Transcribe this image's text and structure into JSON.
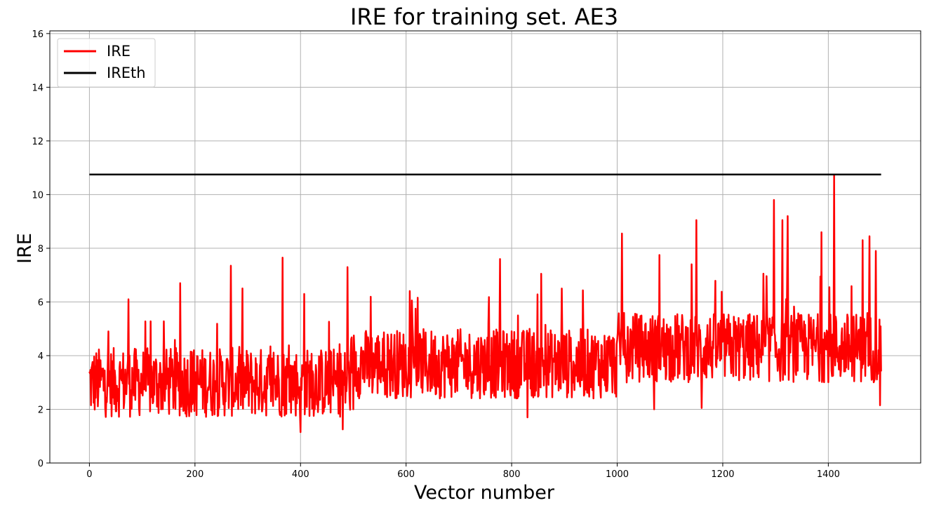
{
  "chart_data": {
    "type": "line",
    "title": "IRE for training set. AE3",
    "xlabel": "Vector number",
    "ylabel": "IRE",
    "xlim": [
      -75,
      1575
    ],
    "ylim": [
      0,
      16.1
    ],
    "x_ticks": [
      0,
      200,
      400,
      600,
      800,
      1000,
      1200,
      1400
    ],
    "y_ticks": [
      0,
      2,
      4,
      6,
      8,
      10,
      12,
      14,
      16
    ],
    "grid": true,
    "legend_position": "top-left",
    "n_points": 1501,
    "series": [
      {
        "name": "IRE",
        "color": "#ff0000",
        "description": "noisy per-vector reconstruction error; mostly between ~1.2 and ~7.7 for vectors 0-1000, rising to ~2-9 after 1000",
        "segments": [
          {
            "x_range": [
              0,
              500
            ],
            "mean": 3.0,
            "min": 1.15,
            "max": 7.7
          },
          {
            "x_range": [
              500,
              1000
            ],
            "mean": 3.7,
            "min": 1.7,
            "max": 7.65
          },
          {
            "x_range": [
              1000,
              1500
            ],
            "mean": 4.3,
            "min": 2.0,
            "max": 10.75
          }
        ],
        "peaks": [
          {
            "x": 74,
            "y": 6.1
          },
          {
            "x": 172,
            "y": 6.7
          },
          {
            "x": 268,
            "y": 7.35
          },
          {
            "x": 366,
            "y": 7.65
          },
          {
            "x": 407,
            "y": 6.3
          },
          {
            "x": 489,
            "y": 7.3
          },
          {
            "x": 618,
            "y": 5.75
          },
          {
            "x": 778,
            "y": 7.6
          },
          {
            "x": 856,
            "y": 7.05
          },
          {
            "x": 895,
            "y": 6.5
          },
          {
            "x": 1009,
            "y": 8.55
          },
          {
            "x": 1080,
            "y": 7.75
          },
          {
            "x": 1150,
            "y": 9.05
          },
          {
            "x": 1297,
            "y": 9.8
          },
          {
            "x": 1313,
            "y": 9.05
          },
          {
            "x": 1323,
            "y": 9.2
          },
          {
            "x": 1387,
            "y": 8.6
          },
          {
            "x": 1411,
            "y": 10.75
          },
          {
            "x": 1465,
            "y": 8.3
          },
          {
            "x": 1478,
            "y": 8.45
          },
          {
            "x": 1490,
            "y": 7.9
          }
        ],
        "troughs": [
          {
            "x": 400,
            "y": 1.15
          },
          {
            "x": 480,
            "y": 1.25
          },
          {
            "x": 830,
            "y": 1.7
          },
          {
            "x": 1070,
            "y": 2.0
          },
          {
            "x": 1160,
            "y": 2.05
          },
          {
            "x": 1498,
            "y": 2.15
          }
        ]
      },
      {
        "name": "IREth",
        "color": "#000000",
        "x": [
          0,
          1500
        ],
        "y": [
          10.75,
          10.75
        ]
      }
    ]
  }
}
